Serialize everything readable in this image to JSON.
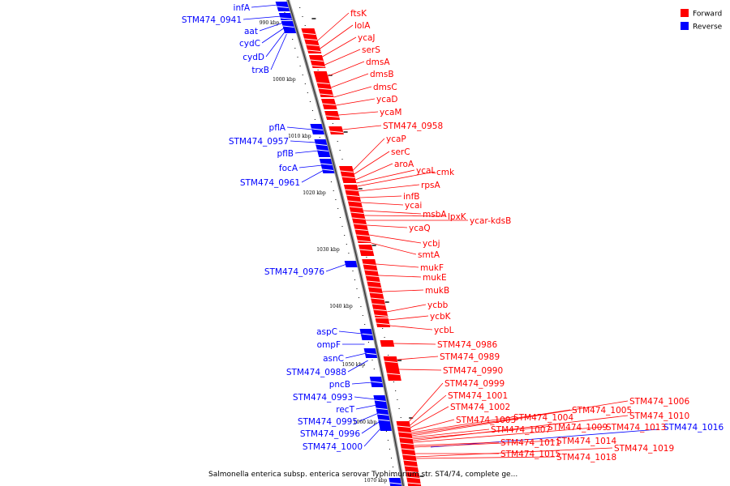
{
  "legend": {
    "forward_label": "Forward",
    "reverse_label": "Reverse",
    "forward_color": "#ff0000",
    "reverse_color": "#0000ff"
  },
  "caption": "Salmonella enterica subsp. enterica serovar Typhimurium str. ST4/74, complete ge...",
  "ticks": [
    "990 kbp",
    "1000 kbp",
    "1010 kbp",
    "1020 kbp",
    "1030 kbp",
    "1040 kbp",
    "1050 kbp",
    "1060 kbp",
    "1070 kbp"
  ],
  "reverse_genes": [
    "infA",
    "STM474_0941",
    "aat",
    "cydC",
    "cydD",
    "trxB",
    "pflA",
    "STM474_0957",
    "pflB",
    "focA",
    "STM474_0961",
    "STM474_0976",
    "aspC",
    "ompF",
    "asnC",
    "STM474_0988",
    "pncB",
    "STM474_0993",
    "recT",
    "STM474_0995",
    "STM474_0996",
    "STM474_1000",
    "STM474_1016"
  ],
  "forward_genes": [
    "ftsK",
    "lolA",
    "ycaJ",
    "serS",
    "dmsA",
    "dmsB",
    "dmsC",
    "ycaD",
    "ycaM",
    "STM474_0958",
    "ycaP",
    "serC",
    "aroA",
    "ycaL",
    "cmk",
    "rpsA",
    "infB",
    "ycai",
    "msbA",
    "lpxK",
    "ycaQ",
    "ycar-kdsB",
    "ycbj",
    "smtA",
    "mukF",
    "mukE",
    "mukB",
    "ycbb",
    "ycbK",
    "ycbL",
    "STM474_0986",
    "STM474_0989",
    "STM474_0990",
    "STM474_0999",
    "STM474_1001",
    "STM474_1002",
    "STM474_1003",
    "STM474_1004",
    "STM474_1005",
    "STM474_1006",
    "STM474_1007",
    "STM474_1009",
    "STM474_1010",
    "STM474_1013",
    "STM474_1011",
    "STM474_1014",
    "STM474_1015",
    "STM474_1018",
    "STM474_1019"
  ]
}
